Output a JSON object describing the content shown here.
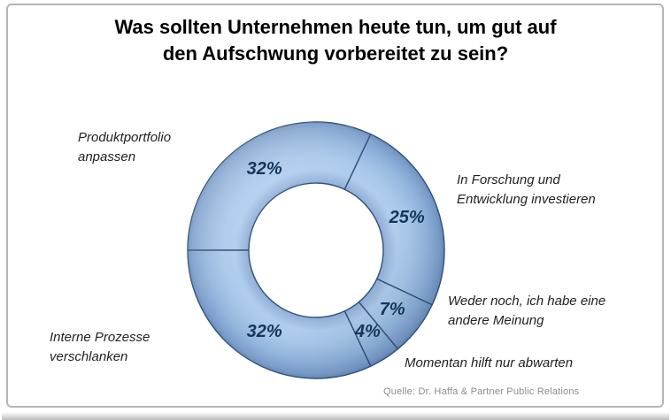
{
  "title": {
    "text": "Was sollten Unternehmen heute tun, um gut auf\nden Aufschwung vorbereitet zu sein?"
  },
  "source": {
    "text": "Quelle: Dr. Haffa & Partner Public Relations"
  },
  "chart_data": {
    "type": "pie",
    "subtype": "donut",
    "title": "Was sollten Unternehmen heute tun, um gut auf den Aufschwung vorbereitet zu sein?",
    "unit": "%",
    "legend_position": "none",
    "direction": "clockwise",
    "start_angle_clockwise_from_12": 270,
    "categories": [
      "Produktportfolio anpassen",
      "In Forschung und Entwicklung investieren",
      "Weder noch, ich habe eine andere Meinung",
      "Momentan hilft nur abwarten",
      "Interne Prozesse verschlanken"
    ],
    "values": [
      32,
      25,
      7,
      4,
      32
    ],
    "labels": [
      "32%",
      "25%",
      "7%",
      "4%",
      "32%"
    ],
    "source": "Quelle: Dr. Haffa & Partner Public Relations",
    "palette": {
      "slice_light": "#b0cdee",
      "slice_mid": "#9fc0e4",
      "slice_dark": "#6c8ebd",
      "outline": "#31517c",
      "percent_label_color": "#15355b",
      "category_label_color": "#222222",
      "hole_color": "#ffffff",
      "source_color": "#8c8c8c"
    }
  }
}
